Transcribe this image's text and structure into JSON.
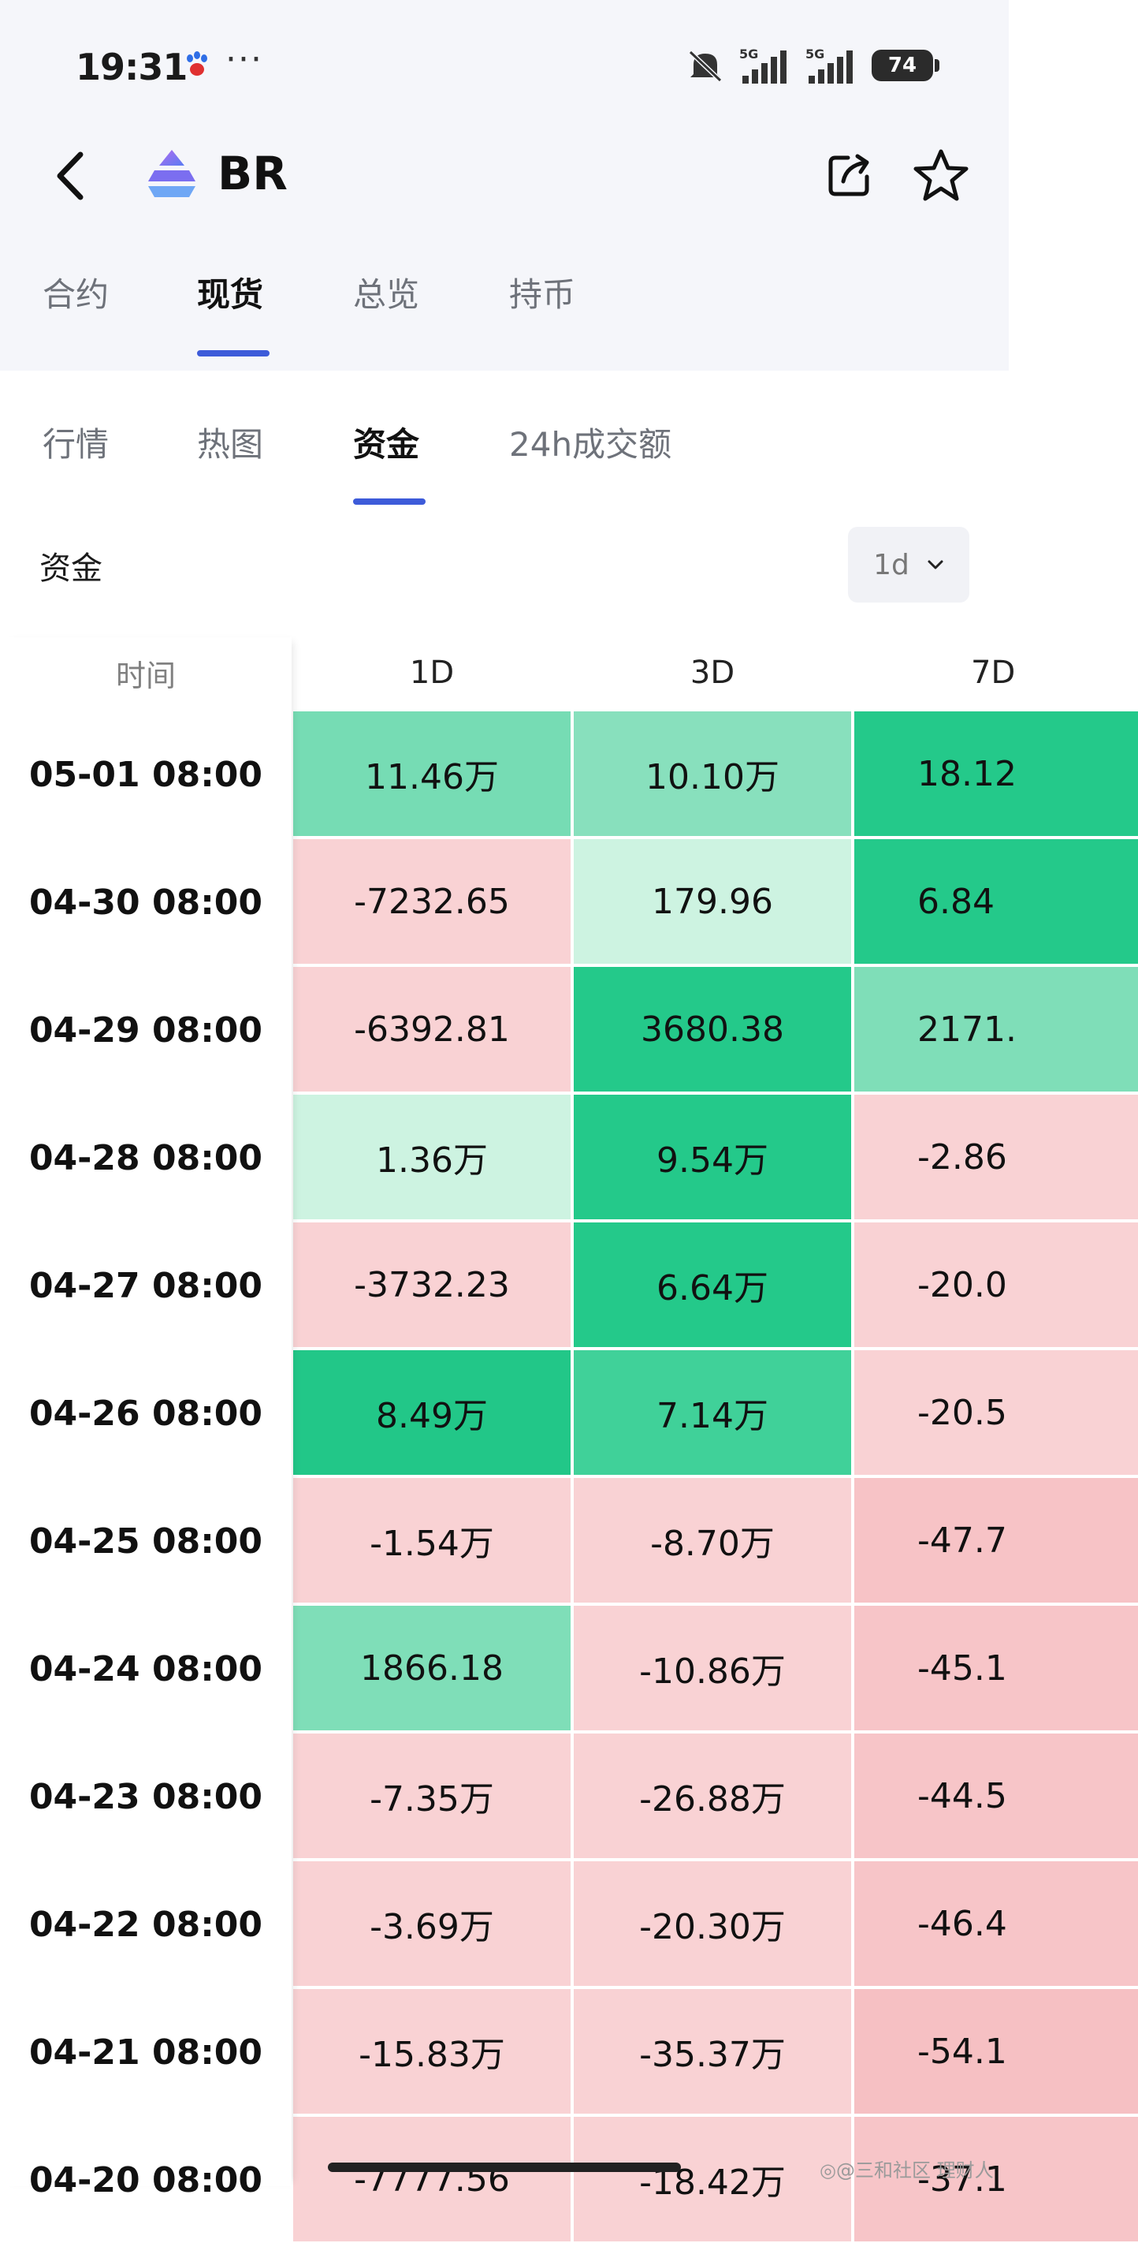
{
  "status_bar": {
    "time": "19:31",
    "dots": "···",
    "net1": "5G",
    "net2": "5G",
    "battery": "74"
  },
  "header": {
    "title": "BR"
  },
  "main_tabs": [
    {
      "label": "合约",
      "active": false
    },
    {
      "label": "现货",
      "active": true
    },
    {
      "label": "总览",
      "active": false
    },
    {
      "label": "持币",
      "active": false
    }
  ],
  "sub_tabs": [
    {
      "label": "行情",
      "active": false
    },
    {
      "label": "热图",
      "active": false
    },
    {
      "label": "资金",
      "active": true
    },
    {
      "label": "24h成交额",
      "active": false
    }
  ],
  "section": {
    "label": "资金",
    "period": "1d"
  },
  "table": {
    "headers": [
      "时间",
      "1D",
      "3D",
      "7D"
    ],
    "rows": [
      {
        "time": "05-01 08:00",
        "d1": "11.46万",
        "d3": "10.10万",
        "d7": "18.12"
      },
      {
        "time": "04-30 08:00",
        "d1": "-7232.65",
        "d3": "179.96",
        "d7": "6.84"
      },
      {
        "time": "04-29 08:00",
        "d1": "-6392.81",
        "d3": "3680.38",
        "d7": "2171."
      },
      {
        "time": "04-28 08:00",
        "d1": "1.36万",
        "d3": "9.54万",
        "d7": "-2.86"
      },
      {
        "time": "04-27 08:00",
        "d1": "-3732.23",
        "d3": "6.64万",
        "d7": "-20.0"
      },
      {
        "time": "04-26 08:00",
        "d1": "8.49万",
        "d3": "7.14万",
        "d7": "-20.5"
      },
      {
        "time": "04-25 08:00",
        "d1": "-1.54万",
        "d3": "-8.70万",
        "d7": "-47.7"
      },
      {
        "time": "04-24 08:00",
        "d1": "1866.18",
        "d3": "-10.86万",
        "d7": "-45.1"
      },
      {
        "time": "04-23 08:00",
        "d1": "-7.35万",
        "d3": "-26.88万",
        "d7": "-44.5"
      },
      {
        "time": "04-22 08:00",
        "d1": "-3.69万",
        "d3": "-20.30万",
        "d7": "-46.4"
      },
      {
        "time": "04-21 08:00",
        "d1": "-15.83万",
        "d3": "-35.37万",
        "d7": "-54.1"
      },
      {
        "time": "04-20 08:00",
        "d1": "-7777.56",
        "d3": "-18.42万",
        "d7": "-37.1"
      }
    ],
    "cell_colors": [
      [
        "#76dcb4",
        "#88e0bd",
        "#24c98a"
      ],
      [
        "#f9d2d4",
        "#cdf3e1",
        "#24c98a"
      ],
      [
        "#f9d2d4",
        "#24c98a",
        "#7fdeb8"
      ],
      [
        "#cdf3e1",
        "#24c98a",
        "#f9d2d4"
      ],
      [
        "#f9d2d4",
        "#24c98a",
        "#f9d2d4"
      ],
      [
        "#22c788",
        "#40d199",
        "#f9d2d4"
      ],
      [
        "#f9d2d4",
        "#f9d2d4",
        "#f7c3c6"
      ],
      [
        "#7fdeb8",
        "#f9d2d4",
        "#f7c5c8"
      ],
      [
        "#f9d2d4",
        "#f9d2d4",
        "#f7c5c8"
      ],
      [
        "#f9d2d4",
        "#f9d2d4",
        "#f7c5c8"
      ],
      [
        "#f9d2d4",
        "#f9d2d4",
        "#f6c0c3"
      ],
      [
        "#f9d2d4",
        "#f9d2d4",
        "#f7c5c8"
      ]
    ]
  },
  "watermark": "◎@三和社区 理财人"
}
